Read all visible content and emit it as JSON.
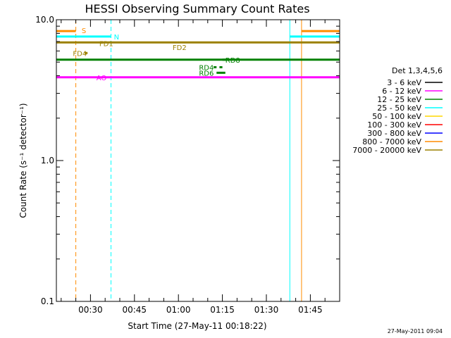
{
  "chart_data": {
    "type": "line",
    "title": "HESSI Observing Summary Count Rates",
    "xlabel": "Start Time (27-May-11 00:18:22)",
    "ylabel": "Count Rate (s⁻¹ detector⁻¹)",
    "y_scale": "log",
    "ylim": [
      0.1,
      10.0
    ],
    "xlim": [
      "00:18:22",
      "01:55:00"
    ],
    "x_ticks": [
      "00:30",
      "00:45",
      "01:00",
      "01:15",
      "01:30",
      "01:45"
    ],
    "y_ticks": [
      "0.1",
      "1.0",
      "10.0"
    ],
    "grid": false,
    "legend": {
      "placement": "right",
      "title": "Det 1,3,4,5,6",
      "entries": [
        {
          "label": "3 - 6 keV",
          "color": "#000000"
        },
        {
          "label": "6 - 12 keV",
          "color": "#ff00ff"
        },
        {
          "label": "12 - 25 keV",
          "color": "#008000"
        },
        {
          "label": "25 - 50 keV",
          "color": "#00ffff"
        },
        {
          "label": "50 - 100 keV",
          "color": "#ffd700"
        },
        {
          "label": "100 - 300 keV",
          "color": "#ff0000"
        },
        {
          "label": "300 - 800 keV",
          "color": "#0000ff"
        },
        {
          "label": "800 - 7000 keV",
          "color": "#ff8c00"
        },
        {
          "label": "7000 - 20000 keV",
          "color": "#9b8000"
        }
      ]
    },
    "series": [
      {
        "color": "#ff00ff",
        "segments": [
          {
            "x": [
              "00:18:22",
              "01:55:00"
            ],
            "y": 3.9
          }
        ]
      },
      {
        "color": "#008000",
        "segments": [
          {
            "x": [
              "00:18:22",
              "01:55:00"
            ],
            "y": 5.2
          }
        ]
      },
      {
        "color": "#9b8000",
        "segments": [
          {
            "x": [
              "00:18:22",
              "01:55:00"
            ],
            "y": 6.9
          }
        ]
      },
      {
        "color": "#00ffff",
        "segments": [
          {
            "x": [
              "00:18:22",
              "00:37:00"
            ],
            "y": 7.6
          },
          {
            "x": [
              "01:38:00",
              "01:55:00"
            ],
            "y": 7.6
          }
        ]
      },
      {
        "color": "#ff8c00",
        "segments": [
          {
            "x": [
              "00:18:22",
              "00:25:00"
            ],
            "y": 8.3
          },
          {
            "x": [
              "01:42:00",
              "01:55:00"
            ],
            "y": 8.3
          }
        ]
      },
      {
        "color": "#008000",
        "segments": [
          {
            "x": [
              "01:13:00",
              "01:16:00"
            ],
            "y": 4.2
          },
          {
            "x": [
              "01:12:00",
              "01:13:00"
            ],
            "y": 4.6
          },
          {
            "x": [
              "01:14:00",
              "01:15:00"
            ],
            "y": 4.6
          },
          {
            "x": [
              "01:15:00",
              "01:17:00"
            ],
            "y": 5.2
          }
        ]
      },
      {
        "color": "#9b8000",
        "segments": [
          {
            "x": [
              "00:28:00",
              "00:29:00"
            ],
            "y": 5.8
          }
        ]
      }
    ],
    "vertical_markers": [
      {
        "time": "00:18:22",
        "color": "#00ffff",
        "style": "solid"
      },
      {
        "time": "00:25:00",
        "color": "#ff8c00",
        "style": "dashed"
      },
      {
        "time": "00:37:00",
        "color": "#00ffff",
        "style": "dashed"
      },
      {
        "time": "01:38:00",
        "color": "#00ffff",
        "style": "solid"
      },
      {
        "time": "01:42:00",
        "color": "#ff8c00",
        "style": "solid"
      },
      {
        "time": "01:55:00",
        "color": "#ff8c00",
        "style": "dashed"
      },
      {
        "time": "01:55:00",
        "color": "#00ffff",
        "style": "dashed"
      }
    ],
    "annotations": [
      {
        "text": "S",
        "time": "00:27:00",
        "y": 8.4,
        "color": "#ff8c00"
      },
      {
        "text": "N",
        "time": "00:38:00",
        "y": 7.6,
        "color": "#00ffff"
      },
      {
        "text": "FD1",
        "time": "00:33:00",
        "y": 6.8,
        "color": "#9b8000"
      },
      {
        "text": "FD2",
        "time": "00:58:00",
        "y": 6.4,
        "color": "#9b8000"
      },
      {
        "text": "FD4",
        "time": "00:24:00",
        "y": 5.8,
        "color": "#9b8000"
      },
      {
        "text": "RD8",
        "time": "01:16:00",
        "y": 5.2,
        "color": "#008000"
      },
      {
        "text": "RD4",
        "time": "01:07:00",
        "y": 4.6,
        "color": "#008000"
      },
      {
        "text": "RD6",
        "time": "01:07:00",
        "y": 4.2,
        "color": "#008000"
      },
      {
        "text": "AO",
        "time": "00:32:00",
        "y": 3.9,
        "color": "#ff00ff"
      }
    ]
  },
  "footer": {
    "timestamp": "27-May-2011 09:04"
  }
}
